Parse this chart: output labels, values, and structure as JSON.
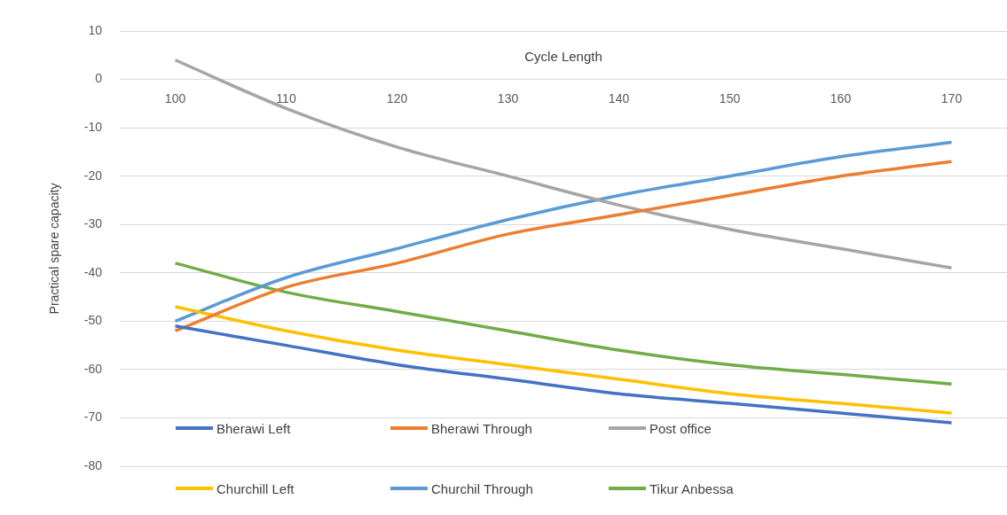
{
  "chart_data": {
    "type": "line",
    "xlabel": "Cycle Length",
    "ylabel": "Practical spare capacity",
    "x": [
      100,
      110,
      120,
      130,
      140,
      150,
      160,
      170
    ],
    "xlim": [
      95,
      175
    ],
    "xticks": [
      100,
      110,
      120,
      130,
      140,
      150,
      160,
      170
    ],
    "ylim": [
      -80,
      10
    ],
    "yticks": [
      10,
      0,
      -10,
      -20,
      -30,
      -40,
      -50,
      -60,
      -70,
      -80
    ],
    "grid": "y",
    "legend": "bottom",
    "marker": "none",
    "line_style": "solid",
    "series": [
      {
        "name": "Bherawi Left",
        "color": "#4472c4",
        "values": [
          -51,
          -55,
          -59,
          -62,
          -65,
          -67,
          -69,
          -71
        ]
      },
      {
        "name": "Bherawi Through",
        "color": "#ed7d31",
        "values": [
          -52,
          -43,
          -38,
          -32,
          -28,
          -24,
          -20,
          -17
        ]
      },
      {
        "name": "Post office",
        "color": "#a5a5a5",
        "values": [
          4,
          -6,
          -14,
          -20,
          -26,
          -31,
          -35,
          -39
        ]
      },
      {
        "name": "Churchill Left",
        "color": "#ffc000",
        "values": [
          -47,
          -52,
          -56,
          -59,
          -62,
          -65,
          -67,
          -69
        ]
      },
      {
        "name": "Churchil Through",
        "color": "#5b9bd5",
        "values": [
          -50,
          -41,
          -35,
          -29,
          -24,
          -20,
          -16,
          -13
        ]
      },
      {
        "name": "Tikur Anbessa",
        "color": "#70ad47",
        "values": [
          -38,
          -44,
          -48,
          -52,
          -56,
          -59,
          -61,
          -63
        ]
      }
    ]
  }
}
